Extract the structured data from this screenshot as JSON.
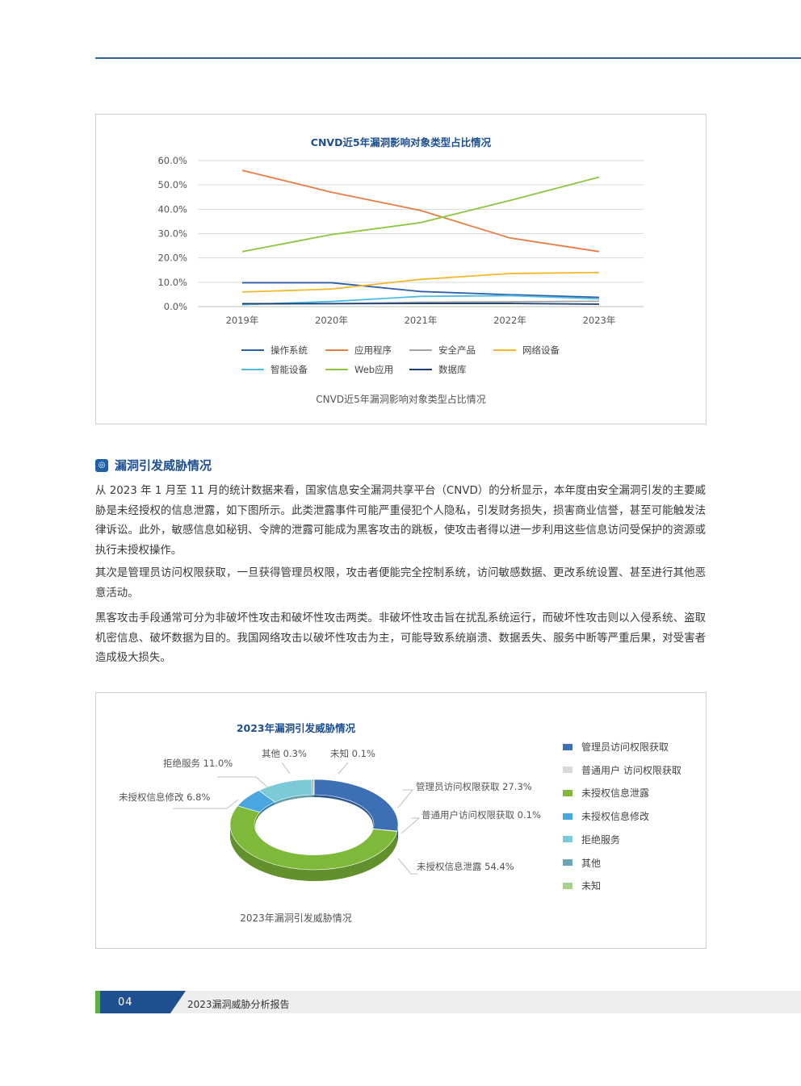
{
  "figure1": {
    "chart_data": {
      "type": "line",
      "title": "CNVD近5年漏洞影响对象类型占比情况",
      "categories": [
        "2019年",
        "2020年",
        "2021年",
        "2022年",
        "2023年"
      ],
      "y_ticks": [
        "60.0%",
        "50.0%",
        "40.0%",
        "30.0%",
        "20.0%",
        "10.0%",
        "0.0%"
      ],
      "ylim": [
        0,
        60
      ],
      "grid": true,
      "legend_position": "bottom",
      "series": [
        {
          "name": "操作系统",
          "color": "#2e5fa8",
          "values": [
            9.8,
            9.8,
            6.2,
            4.9,
            3.8
          ]
        },
        {
          "name": "应用程序",
          "color": "#e87d44",
          "values": [
            56.0,
            47.0,
            39.5,
            28.2,
            22.6
          ]
        },
        {
          "name": "安全产品",
          "color": "#a5a5a5",
          "values": [
            1.0,
            1.2,
            1.8,
            2.0,
            2.2
          ]
        },
        {
          "name": "网络设备",
          "color": "#f5b728",
          "values": [
            6.0,
            7.2,
            11.2,
            13.6,
            14.0
          ]
        },
        {
          "name": "智能设备",
          "color": "#4dbde8",
          "values": [
            0.8,
            2.1,
            4.2,
            4.5,
            3.2
          ]
        },
        {
          "name": "Web应用",
          "color": "#8dc63f",
          "values": [
            22.6,
            29.6,
            34.5,
            43.6,
            53.2
          ]
        },
        {
          "name": "数据库",
          "color": "#1a3f73",
          "values": [
            1.2,
            1.2,
            1.3,
            1.3,
            1.0
          ]
        }
      ]
    },
    "caption": "CNVD近5年漏洞影响对象类型占比情况"
  },
  "section": {
    "icon": "section-badge-icon",
    "title": "漏洞引发威胁情况"
  },
  "paragraphs": [
    "从 2023 年 1 月至 11 月的统计数据来看，国家信息安全漏洞共享平台（CNVD）的分析显示，本年度由安全漏洞引发的主要威胁是未经授权的信息泄露，如下图所示。此类泄露事件可能严重侵犯个人隐私，引发财务损失，损害商业信誉，甚至可能触发法律诉讼。此外，敏感信息如秘钥、令牌的泄露可能成为黑客攻击的跳板，使攻击者得以进一步利用这些信息访问受保护的资源或执行未授权操作。",
    "其次是管理员访问权限获取，一旦获得管理员权限，攻击者便能完全控制系统，访问敏感数据、更改系统设置、甚至进行其他恶意活动。",
    "黑客攻击手段通常可分为非破坏性攻击和破坏性攻击两类。非破坏性攻击旨在扰乱系统运行，而破坏性攻击则以入侵系统、盗取机密信息、破坏数据为目的。我国网络攻击以破坏性攻击为主，可能导致系统崩溃、数据丢失、服务中断等严重后果，对受害者造成极大损失。"
  ],
  "figure2": {
    "chart_data": {
      "type": "pie",
      "title": "2023年漏洞引发威胁情况",
      "legend_position": "right",
      "slices": [
        {
          "name": "管理员访问权限获取",
          "value": 27.3,
          "label": "管理员访问权限获取 27.3%",
          "color": "#3d6fb4"
        },
        {
          "name": "普通用户 访问权限获取",
          "value": 0.1,
          "label": "普通用户访问权限获取 0.1%",
          "color": "#d9d9d9"
        },
        {
          "name": "未授权信息泄露",
          "value": 54.4,
          "label": "未授权信息泄露 54.4%",
          "color": "#7fb93a"
        },
        {
          "name": "未授权信息修改",
          "value": 6.8,
          "label": "未授权信息修改 6.8%",
          "color": "#4aa6df"
        },
        {
          "name": "拒绝服务",
          "value": 11.0,
          "label": "拒绝服务 11.0%",
          "color": "#7ccad8"
        },
        {
          "name": "其他",
          "value": 0.3,
          "label": "其他 0.3%",
          "color": "#6aa4b8"
        },
        {
          "name": "未知",
          "value": 0.1,
          "label": "未知 0.1%",
          "color": "#a9d18e"
        }
      ]
    },
    "caption": "2023年漏洞引发威胁情况"
  },
  "footer": {
    "page_number": "04",
    "report_title": "2023漏洞威胁分析报告"
  }
}
